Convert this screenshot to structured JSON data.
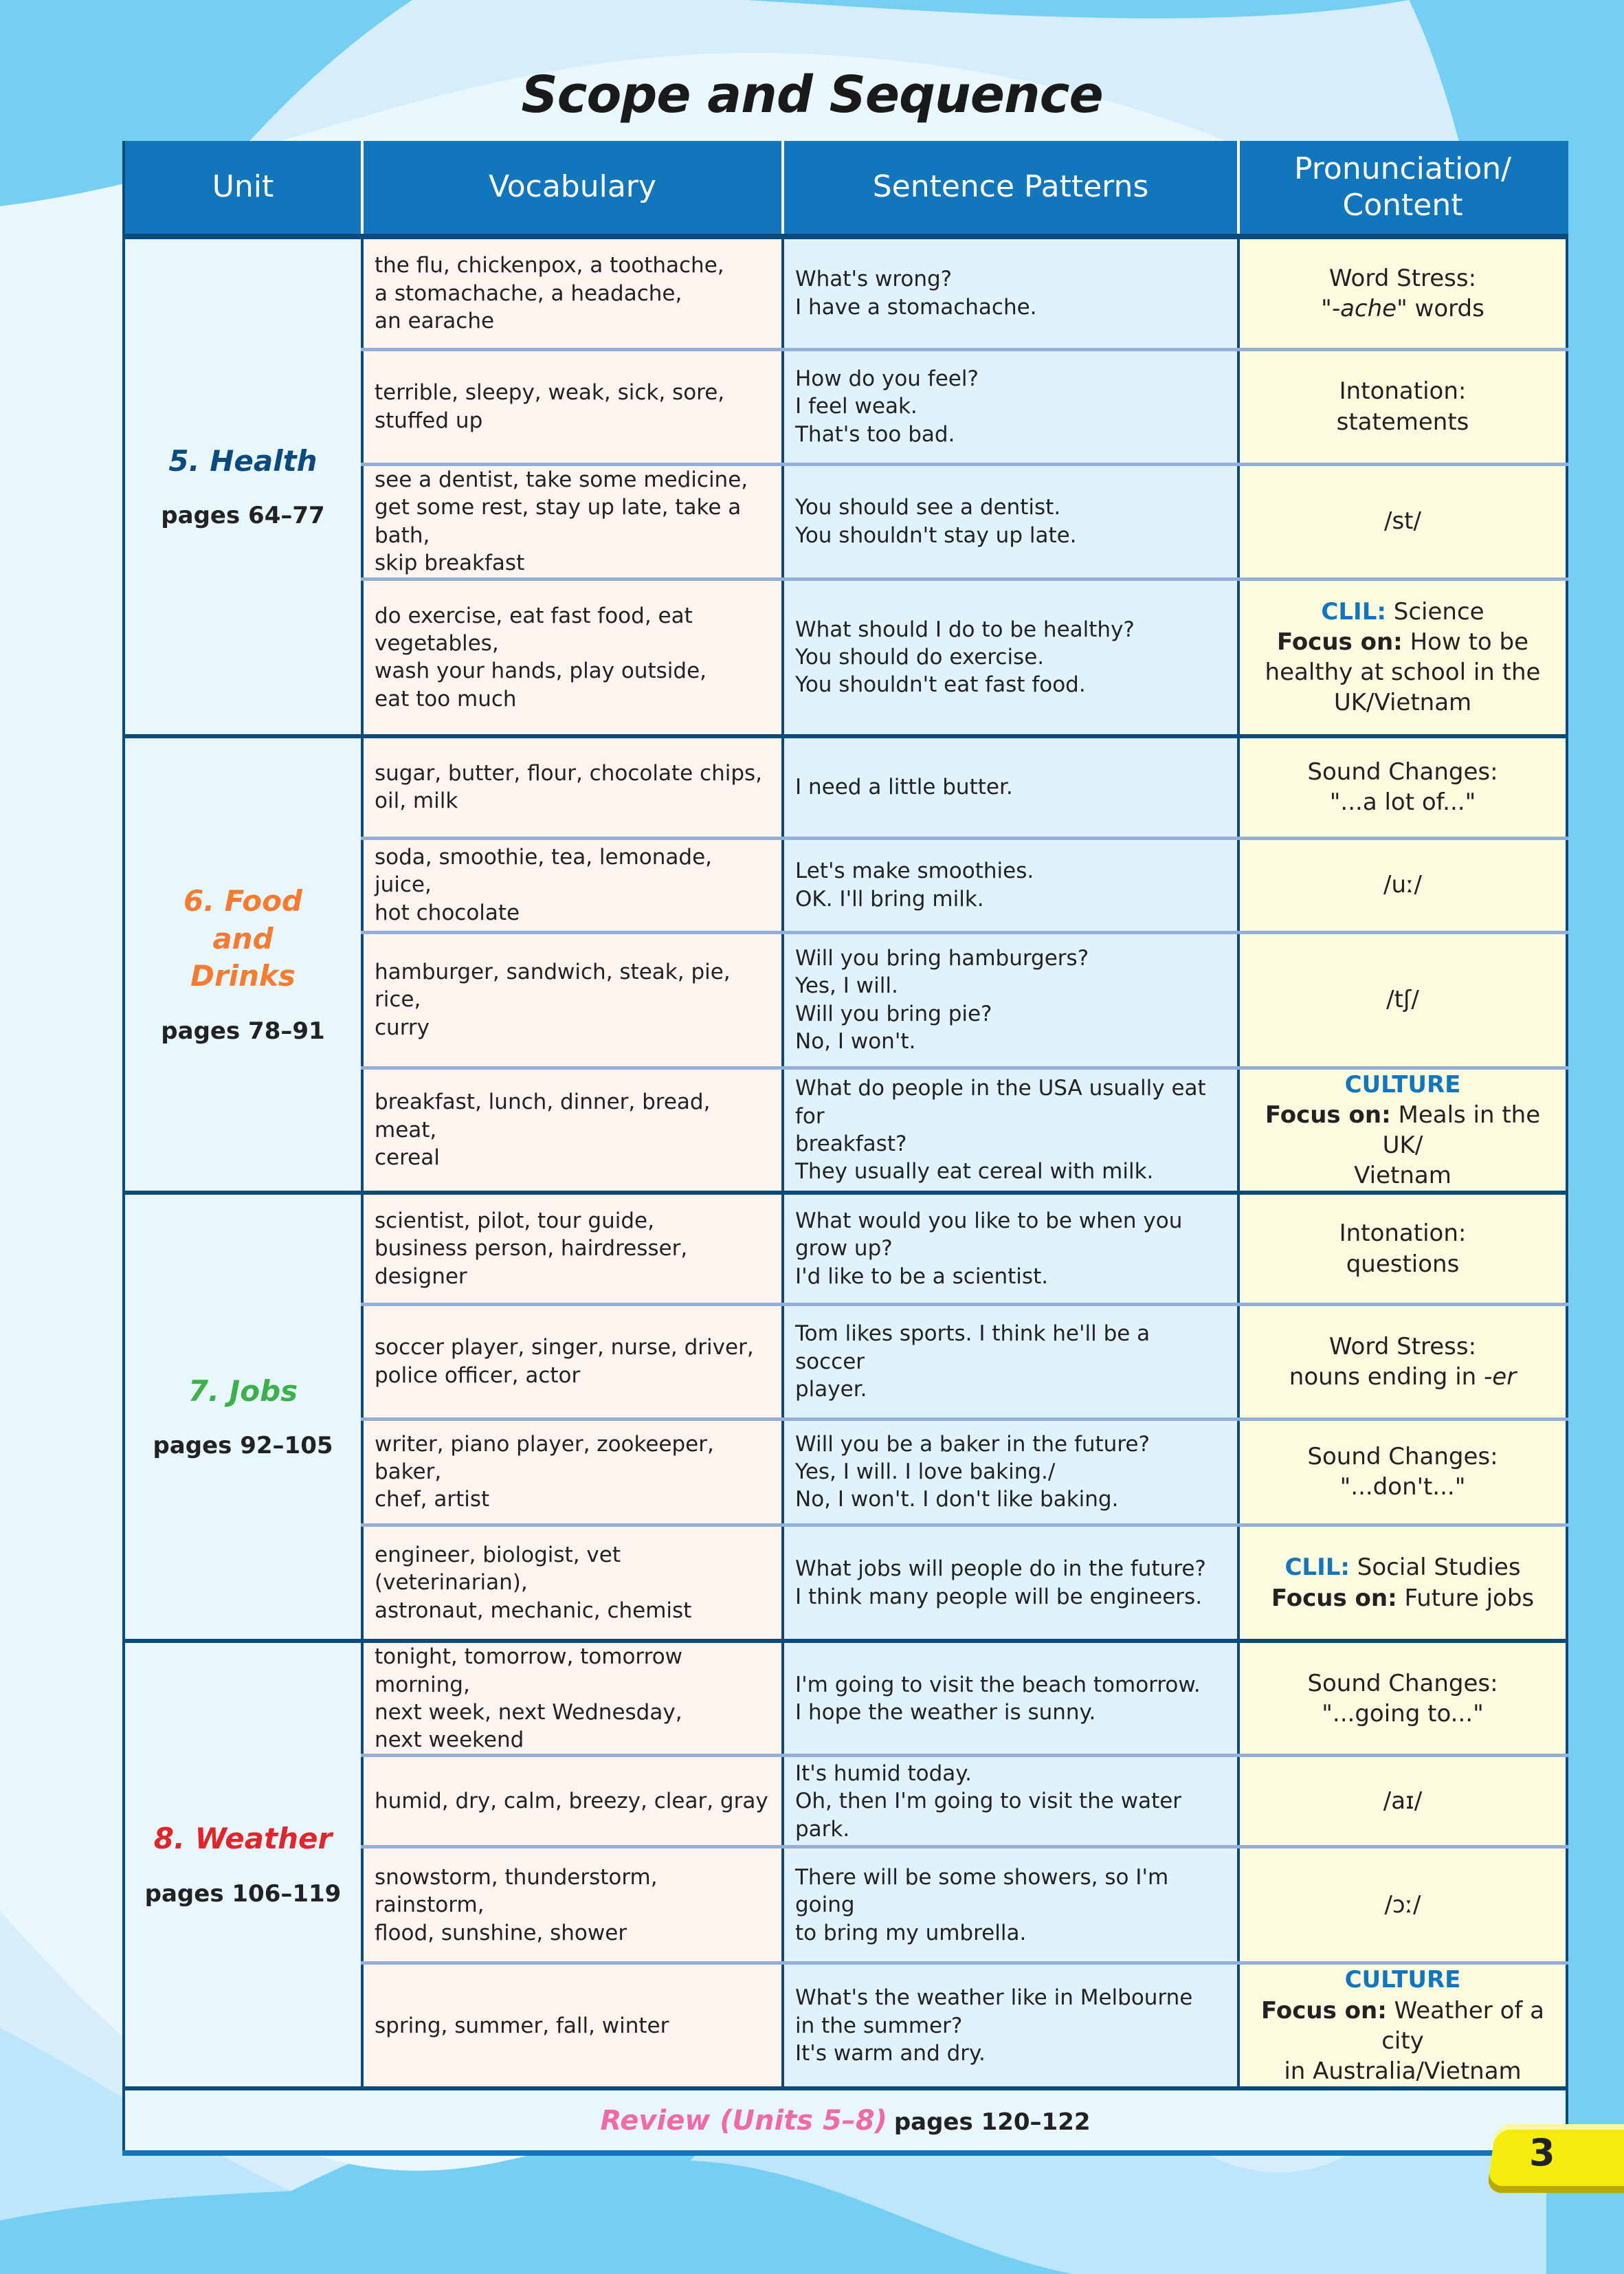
{
  "title": "Scope and Sequence",
  "headers": [
    "Unit",
    "Vocabulary",
    "Sentence Patterns",
    "Pronunciation/ Content"
  ],
  "colors": {
    "header": "#1276bd",
    "border": "#0b4a7c",
    "unit_health": "#0b4a7c",
    "unit_food": "#f47b30",
    "unit_jobs": "#3cb04a",
    "unit_weather": "#e0262b",
    "review": "#ef6aa8",
    "tag": "#1276bd"
  },
  "units": [
    {
      "name": "5. Health",
      "pages": "pages 64–77",
      "color": "#0b4a7c",
      "rows": [
        {
          "vocab": [
            "the flu, chickenpox, a toothache,",
            "a stomachache, a headache,",
            "an earache"
          ],
          "sentences": [
            "What's wrong?",
            "I have a stomachache."
          ],
          "pron": [
            [
              {
                "t": "Word Stress:"
              }
            ],
            [
              {
                "t": "\""
              },
              {
                "t": "-ache",
                "s": "i"
              },
              {
                "t": "\" words"
              }
            ]
          ]
        },
        {
          "vocab": [
            "terrible, sleepy, weak, sick, sore,",
            "stuffed up"
          ],
          "sentences": [
            "How do you feel?",
            "I feel weak.",
            "That's too bad."
          ],
          "pron": [
            [
              {
                "t": "Intonation:"
              }
            ],
            [
              {
                "t": "statements"
              }
            ]
          ]
        },
        {
          "vocab": [
            "see a dentist, take some medicine,",
            "get some rest, stay up late, take a bath,",
            "skip breakfast"
          ],
          "sentences": [
            "You should see a dentist.",
            "You shouldn't stay up late."
          ],
          "pron": [
            [
              {
                "t": "/st/"
              }
            ]
          ]
        },
        {
          "vocab": [
            "do exercise, eat fast food, eat vegetables,",
            "wash your hands, play outside,",
            "eat too much"
          ],
          "sentences": [
            "What should I do to be healthy?",
            "You should do exercise.",
            "You shouldn't eat fast food."
          ],
          "pron": [
            [
              {
                "t": "CLIL:",
                "s": "blue"
              },
              {
                "t": " Science"
              }
            ],
            [
              {
                "t": "Focus on:",
                "s": "b"
              },
              {
                "t": " How to be"
              }
            ],
            [
              {
                "t": "healthy at school in the"
              }
            ],
            [
              {
                "t": "UK/Vietnam"
              }
            ]
          ]
        }
      ]
    },
    {
      "name": "6. Food and Drinks",
      "pages": "pages 78–91",
      "color": "#f47b30",
      "rows": [
        {
          "vocab": [
            "sugar, butter, flour, chocolate chips,",
            "oil, milk"
          ],
          "sentences": [
            "I need a little butter."
          ],
          "pron": [
            [
              {
                "t": "Sound Changes:"
              }
            ],
            [
              {
                "t": "\"...a lot of...\""
              }
            ]
          ]
        },
        {
          "vocab": [
            "soda, smoothie, tea, lemonade, juice,",
            "hot chocolate"
          ],
          "sentences": [
            "Let's make smoothies.",
            "OK. I'll bring milk."
          ],
          "pron": [
            [
              {
                "t": "/uː/"
              }
            ]
          ]
        },
        {
          "vocab": [
            "hamburger, sandwich, steak, pie, rice,",
            "curry"
          ],
          "sentences": [
            "Will you bring hamburgers?",
            "Yes, I will.",
            "Will you bring pie?",
            "No, I won't."
          ],
          "pron": [
            [
              {
                "t": "/tʃ/"
              }
            ]
          ]
        },
        {
          "vocab": [
            "breakfast, lunch, dinner, bread, meat,",
            "cereal"
          ],
          "sentences": [
            "What do people in the USA usually eat for",
            "breakfast?",
            "They usually eat cereal with milk."
          ],
          "pron": [
            [
              {
                "t": "CULTURE",
                "s": "blue"
              }
            ],
            [
              {
                "t": "Focus on:",
                "s": "b"
              },
              {
                "t": " Meals in the UK/"
              }
            ],
            [
              {
                "t": "Vietnam"
              }
            ]
          ]
        }
      ]
    },
    {
      "name": "7. Jobs",
      "pages": "pages 92–105",
      "color": "#3cb04a",
      "rows": [
        {
          "vocab": [
            "scientist, pilot, tour guide,",
            "business person, hairdresser, designer"
          ],
          "sentences": [
            "What would you like to be when you",
            "grow up?",
            "I'd like to be a scientist."
          ],
          "pron": [
            [
              {
                "t": "Intonation:"
              }
            ],
            [
              {
                "t": "questions"
              }
            ]
          ]
        },
        {
          "vocab": [
            "soccer player, singer, nurse, driver,",
            "police officer, actor"
          ],
          "sentences": [
            "Tom likes sports. I think he'll be a soccer",
            "player."
          ],
          "pron": [
            [
              {
                "t": "Word Stress:"
              }
            ],
            [
              {
                "t": "nouns ending in "
              },
              {
                "t": "-er",
                "s": "i"
              }
            ]
          ]
        },
        {
          "vocab": [
            "writer, piano player, zookeeper, baker,",
            "chef, artist"
          ],
          "sentences": [
            "Will you be a baker in the future?",
            "Yes, I will. I love baking./",
            "No, I won't. I don't like baking."
          ],
          "pron": [
            [
              {
                "t": "Sound Changes:"
              }
            ],
            [
              {
                "t": "\"...don't...\""
              }
            ]
          ]
        },
        {
          "vocab": [
            "engineer, biologist, vet (veterinarian),",
            "astronaut, mechanic, chemist"
          ],
          "sentences": [
            "What jobs will people do in the future?",
            "I think many people will be engineers."
          ],
          "pron": [
            [
              {
                "t": "CLIL:",
                "s": "blue"
              },
              {
                "t": " Social Studies"
              }
            ],
            [
              {
                "t": "Focus on:",
                "s": "b"
              },
              {
                "t": " Future jobs"
              }
            ]
          ]
        }
      ]
    },
    {
      "name": "8. Weather",
      "pages": "pages 106–119",
      "color": "#e0262b",
      "rows": [
        {
          "vocab": [
            "tonight, tomorrow, tomorrow morning,",
            "next week, next Wednesday,",
            "next weekend"
          ],
          "sentences": [
            "I'm going to visit the beach tomorrow.",
            "I hope the weather is sunny."
          ],
          "pron": [
            [
              {
                "t": "Sound Changes:"
              }
            ],
            [
              {
                "t": "\"...going to...\""
              }
            ]
          ]
        },
        {
          "vocab": [
            "humid, dry, calm, breezy, clear, gray"
          ],
          "sentences": [
            "It's humid today.",
            "Oh, then I'm going to visit the water park."
          ],
          "pron": [
            [
              {
                "t": "/aɪ/"
              }
            ]
          ]
        },
        {
          "vocab": [
            "snowstorm, thunderstorm, rainstorm,",
            "flood, sunshine, shower"
          ],
          "sentences": [
            "There will be some showers, so I'm going",
            "to bring my umbrella."
          ],
          "pron": [
            [
              {
                "t": "/ɔː/"
              }
            ]
          ]
        },
        {
          "vocab": [
            "spring, summer, fall, winter"
          ],
          "sentences": [
            "What's the weather like in Melbourne",
            "in the summer?",
            "It's warm and dry."
          ],
          "pron": [
            [
              {
                "t": "CULTURE",
                "s": "blue"
              }
            ],
            [
              {
                "t": "Focus on:",
                "s": "b"
              },
              {
                "t": " Weather of a city"
              }
            ],
            [
              {
                "t": "in Australia/Vietnam"
              }
            ]
          ]
        }
      ]
    }
  ],
  "review": {
    "label": "Review (Units 5–8)",
    "pages": "pages 120–122"
  },
  "page_number": "3"
}
